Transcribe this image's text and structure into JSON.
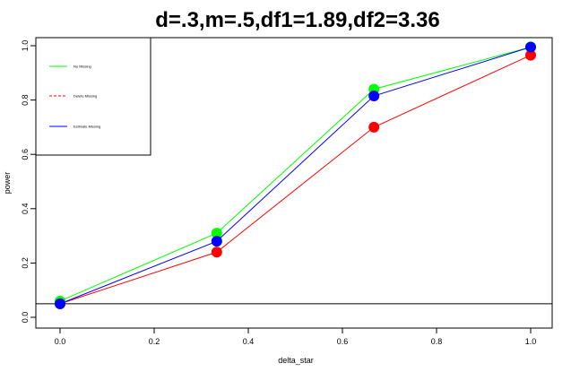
{
  "chart_data": {
    "type": "line",
    "title": "d=.3,m=.5,df1=1.89,df2=3.36",
    "xlabel": "delta_star",
    "ylabel": "power",
    "xlim": [
      0.0,
      1.0
    ],
    "ylim": [
      0.0,
      1.0
    ],
    "xticks": [
      "0.0",
      "0.2",
      "0.4",
      "0.6",
      "0.8",
      "1.0"
    ],
    "yticks": [
      "0.0",
      "0.2",
      "0.4",
      "0.6",
      "0.8",
      "1.0"
    ],
    "x": [
      0.0,
      0.333,
      0.667,
      1.0
    ],
    "series": [
      {
        "name": "No Missing",
        "values": [
          0.06,
          0.31,
          0.84,
          0.995
        ],
        "color": "#00ff00",
        "dash": "solid"
      },
      {
        "name": "Delete Missing",
        "values": [
          0.05,
          0.24,
          0.7,
          0.965
        ],
        "color": "#ff0000",
        "dash": "dashed"
      },
      {
        "name": "Estimate Missing",
        "values": [
          0.05,
          0.28,
          0.815,
          0.995
        ],
        "color": "#0000ff",
        "dash": "solid"
      }
    ],
    "hline": 0.05,
    "legend_position": "top-left",
    "grid": false
  }
}
